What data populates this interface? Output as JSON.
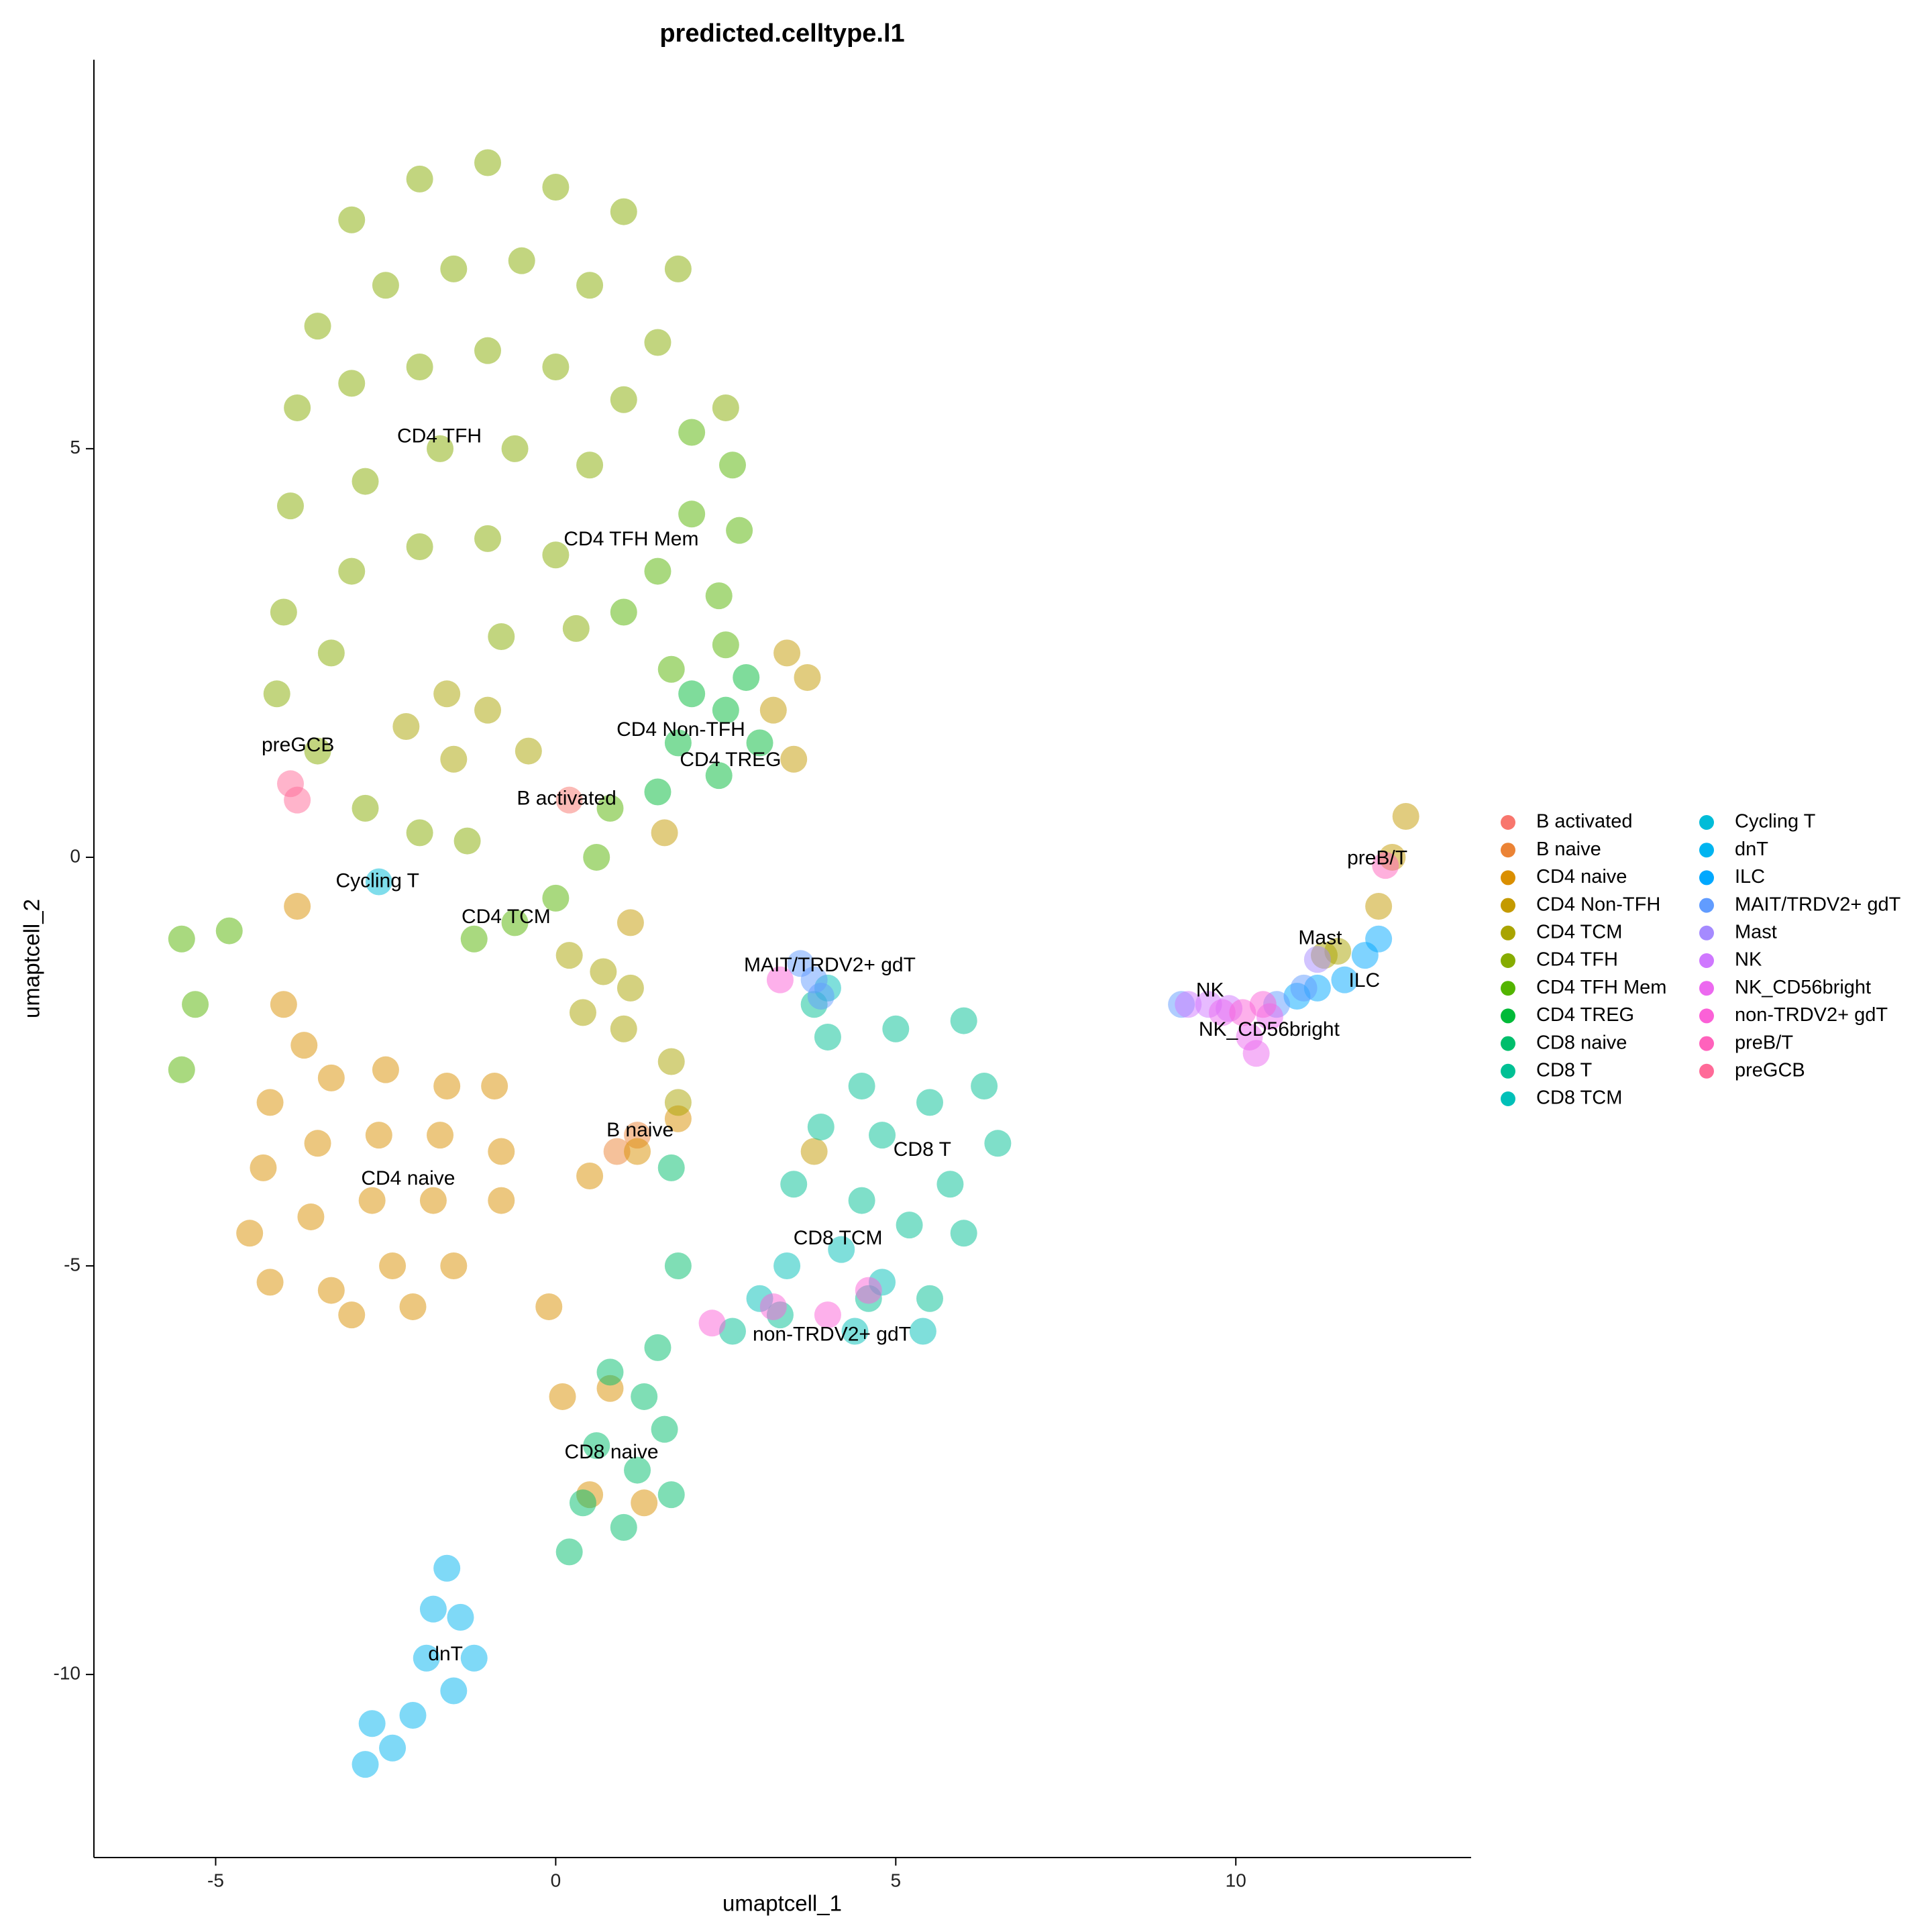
{
  "chart_data": {
    "type": "scatter",
    "title": "predicted.celltype.l1",
    "x_label": "umaptcell_1",
    "y_label": "umaptcell_2",
    "xlim": [
      -6.79,
      13.46
    ],
    "ylim": [
      -12.24,
      9.76
    ],
    "xticks": [
      -5,
      0,
      5,
      10
    ],
    "yticks": [
      5,
      0,
      -5,
      -10
    ],
    "legend": "right",
    "series": [
      {
        "name": "B activated",
        "color": "#F8766D",
        "x": [
          0.2
        ],
        "y": [
          0.7
        ]
      },
      {
        "name": "B naive",
        "color": "#EB8335",
        "x": [
          1.2,
          0.9
        ],
        "y": [
          -3.4,
          -3.6
        ]
      },
      {
        "name": "CD4 naive",
        "color": "#DA8F00",
        "x": [
          -4,
          -3.7,
          -4.2,
          -3.3,
          -2.5,
          -1.6,
          -0.9,
          -4.3,
          -3.5,
          -2.6,
          -1.7,
          -0.8,
          -4.5,
          -3.6,
          -2.7,
          -1.8,
          -0.8,
          -4.2,
          -3.3,
          -2.4,
          -1.5,
          -3,
          -2.1,
          0.5,
          1.2,
          1.8,
          -0.1,
          0.1,
          0.5,
          1.3,
          0.8,
          -3.8
        ],
        "y": [
          -1.8,
          -2.3,
          -3,
          -2.7,
          -2.6,
          -2.8,
          -2.8,
          -3.8,
          -3.5,
          -3.4,
          -3.4,
          -3.6,
          -4.6,
          -4.4,
          -4.2,
          -4.2,
          -4.2,
          -5.2,
          -5.3,
          -5,
          -5,
          -5.6,
          -5.5,
          -3.9,
          -3.6,
          -3.2,
          -5.5,
          -6.6,
          -7.8,
          -7.9,
          -6.5,
          -0.6
        ]
      },
      {
        "name": "CD4 Non-TFH",
        "color": "#C49A00",
        "x": [
          3.4,
          3.7,
          3.2,
          3.5,
          1.6,
          1.1,
          12.3,
          12.5,
          12.1,
          3.8
        ],
        "y": [
          2.5,
          2.2,
          1.8,
          1.2,
          0.3,
          -0.8,
          0,
          0.5,
          -0.6,
          -3.6
        ]
      },
      {
        "name": "CD4 TCM",
        "color": "#A9A400",
        "x": [
          -1.6,
          -1,
          -2.2,
          -0.4,
          -1.5,
          0.2,
          0.7,
          1.1,
          0.4,
          1,
          1.7,
          1.8,
          11.3,
          11.5
        ],
        "y": [
          2,
          1.8,
          1.6,
          1.3,
          1.2,
          -1.2,
          -1.4,
          -1.6,
          -1.9,
          -2.1,
          -2.5,
          -3,
          -1.2,
          -1.15
        ]
      },
      {
        "name": "CD4 TFH",
        "color": "#86AC00",
        "x": [
          -2,
          -1,
          0,
          1,
          1.8,
          -3,
          -3.5,
          -2.5,
          -1.5,
          -0.5,
          0.5,
          1.5,
          2.5,
          -3.8,
          -3,
          -2,
          -1,
          0,
          1,
          -3.9,
          -2.8,
          -1.7,
          -0.6,
          0.5,
          -4,
          -3,
          -2,
          -1,
          0,
          -4.1,
          -3.3,
          -0.8,
          0.3,
          -3.5,
          -2.8,
          -2,
          -1.3
        ],
        "y": [
          8.3,
          8.5,
          8.2,
          7.9,
          7.2,
          7.8,
          6.5,
          7,
          7.2,
          7.3,
          7,
          6.3,
          5.5,
          5.5,
          5.8,
          6,
          6.2,
          6,
          5.6,
          4.3,
          4.6,
          5,
          5,
          4.8,
          3,
          3.5,
          3.8,
          3.9,
          3.7,
          2,
          2.5,
          2.7,
          2.8,
          1.3,
          0.6,
          0.3,
          0.2
        ]
      },
      {
        "name": "CD4 TFH Mem",
        "color": "#53B400",
        "x": [
          2,
          2.6,
          2.7,
          2,
          1.5,
          2.4,
          1,
          1.7,
          2.5,
          0.8,
          0.6,
          0,
          -0.6,
          -1.2,
          -5.5,
          -5.3,
          -5.5,
          -4.8
        ],
        "y": [
          5.2,
          4.8,
          4,
          4.2,
          3.5,
          3.2,
          3,
          2.3,
          2.6,
          0.6,
          0,
          -0.5,
          -0.8,
          -1,
          -1,
          -1.8,
          -2.6,
          -0.9
        ]
      },
      {
        "name": "CD4 TREG",
        "color": "#00BA38",
        "x": [
          2,
          2.5,
          2.8,
          1.8,
          2.4,
          1.5,
          3
        ],
        "y": [
          2,
          1.8,
          2.2,
          1.4,
          1,
          0.8,
          1.4
        ]
      },
      {
        "name": "CD8 naive",
        "color": "#00BE6C",
        "x": [
          0.8,
          1.3,
          1.6,
          0.6,
          1.2,
          1.7,
          0.4,
          1,
          0.2,
          1.5,
          1.8,
          1.7
        ],
        "y": [
          -6.3,
          -6.6,
          -7,
          -7.2,
          -7.5,
          -7.8,
          -7.9,
          -8.2,
          -8.5,
          -6,
          -5,
          -3.8
        ]
      },
      {
        "name": "CD8 T",
        "color": "#00C094",
        "x": [
          4,
          5,
          6,
          6.3,
          5.5,
          6.5,
          5.8,
          4.8,
          3.9,
          4.5,
          5.2,
          6,
          3.5,
          5.5,
          4.6,
          3.3,
          2.6,
          3.8,
          4.5
        ],
        "y": [
          -2.2,
          -2.1,
          -2,
          -2.8,
          -3,
          -3.5,
          -4,
          -3.4,
          -3.3,
          -4.2,
          -4.5,
          -4.6,
          -4,
          -5.4,
          -5.4,
          -5.6,
          -5.8,
          -1.8,
          -2.8
        ]
      },
      {
        "name": "CD8 TCM",
        "color": "#00C0B8",
        "x": [
          4.2,
          3.4,
          4.8,
          3,
          4.4,
          5.4,
          4
        ],
        "y": [
          -4.8,
          -5,
          -5.2,
          -5.4,
          -5.8,
          -5.8,
          -1.6
        ]
      },
      {
        "name": "Cycling T",
        "color": "#00BCD8",
        "x": [
          -2.6
        ],
        "y": [
          -0.3
        ]
      },
      {
        "name": "dnT",
        "color": "#00B4F0",
        "x": [
          -1.6,
          -1.4,
          -1.9,
          -1.5,
          -2.1,
          -2.7,
          -2.4,
          -1.8,
          -2.8,
          -1.2
        ],
        "y": [
          -8.7,
          -9.3,
          -9.8,
          -10.2,
          -10.5,
          -10.6,
          -10.9,
          -9.2,
          -11.1,
          -9.8
        ]
      },
      {
        "name": "ILC",
        "color": "#00A8FF",
        "x": [
          11.6,
          11.9,
          12.1,
          11.2,
          10.9
        ],
        "y": [
          -1.5,
          -1.2,
          -1,
          -1.6,
          -1.7
        ]
      },
      {
        "name": "MAIT/TRDV2+ gdT",
        "color": "#619CFF",
        "x": [
          3.8,
          3.9,
          3.6,
          11,
          10.6,
          9.2
        ],
        "y": [
          -1.5,
          -1.7,
          -1.3,
          -1.6,
          -1.8,
          -1.8
        ]
      },
      {
        "name": "Mast",
        "color": "#A58AFF",
        "x": [
          11.2
        ],
        "y": [
          -1.25
        ]
      },
      {
        "name": "NK",
        "color": "#CF78FF",
        "x": [
          9.6,
          9.9,
          9.3
        ],
        "y": [
          -1.8,
          -1.85,
          -1.8
        ]
      },
      {
        "name": "NK_CD56bright",
        "color": "#EC69EF",
        "x": [
          9.8,
          10.2,
          10.5,
          10.3
        ],
        "y": [
          -1.9,
          -2.2,
          -1.95,
          -2.4
        ]
      },
      {
        "name": "non-TRDV2+ gdT",
        "color": "#FB61D7",
        "x": [
          3.2,
          4,
          4.6,
          2.3,
          10.1,
          10.4,
          3.3
        ],
        "y": [
          -5.5,
          -5.6,
          -5.3,
          -5.7,
          -1.9,
          -1.8,
          -1.5
        ]
      },
      {
        "name": "preB/T",
        "color": "#FF62BC",
        "x": [
          12.2
        ],
        "y": [
          -0.1
        ]
      },
      {
        "name": "preGCB",
        "color": "#FF6A98",
        "x": [
          -3.9,
          -3.8
        ],
        "y": [
          0.9,
          0.7
        ]
      }
    ],
    "annotations": [
      {
        "text": "CD4 TFH",
        "x": -1.71,
        "y": 5.14
      },
      {
        "text": "CD4 TFH Mem",
        "x": 1.11,
        "y": 3.88
      },
      {
        "text": "CD4 Non-TFH",
        "x": 1.84,
        "y": 1.55
      },
      {
        "text": "CD4 TREG",
        "x": 2.57,
        "y": 1.18
      },
      {
        "text": "B activated",
        "x": 0.16,
        "y": 0.71
      },
      {
        "text": "preGCB",
        "x": -3.79,
        "y": 1.36
      },
      {
        "text": "Cycling T",
        "x": -2.62,
        "y": -0.3
      },
      {
        "text": "CD4 TCM",
        "x": -0.73,
        "y": -0.74
      },
      {
        "text": "MAIT/TRDV2+ gdT",
        "x": 4.03,
        "y": -1.33
      },
      {
        "text": "B naive",
        "x": 1.24,
        "y": -3.35
      },
      {
        "text": "CD4 naive",
        "x": -2.17,
        "y": -3.94
      },
      {
        "text": "CD8 T",
        "x": 5.39,
        "y": -3.59
      },
      {
        "text": "CD8 TCM",
        "x": 4.15,
        "y": -4.67
      },
      {
        "text": "non-TRDV2+ gdT",
        "x": 4.06,
        "y": -5.85
      },
      {
        "text": "CD8 naive",
        "x": 0.82,
        "y": -7.29
      },
      {
        "text": "dnT",
        "x": -1.62,
        "y": -9.76
      },
      {
        "text": "preB/T",
        "x": 12.08,
        "y": -0.02
      },
      {
        "text": "Mast",
        "x": 11.24,
        "y": -1.0
      },
      {
        "text": "ILC",
        "x": 11.89,
        "y": -1.52
      },
      {
        "text": "NK",
        "x": 9.62,
        "y": -1.64
      },
      {
        "text": "NK_CD56bright",
        "x": 10.49,
        "y": -2.12
      }
    ]
  }
}
